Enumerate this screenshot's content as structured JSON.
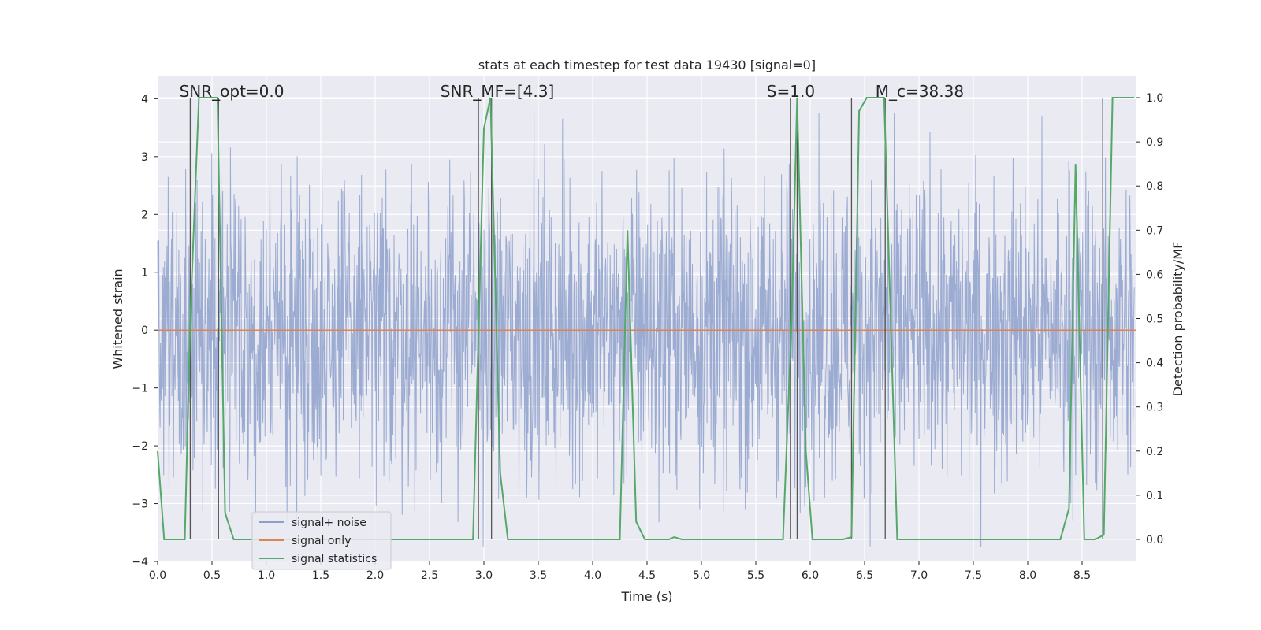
{
  "chart_data": {
    "type": "line",
    "title": "stats at each timestep for test data 19430 [signal=0]",
    "xlabel": "Time (s)",
    "ylabel": "Whitened strain",
    "ylabel_right": "Detection probability/MF",
    "xlim": [
      0,
      9
    ],
    "ylim": [
      -4,
      4.4
    ],
    "ylim_right": [
      -0.05,
      1.05
    ],
    "x_ticks": [
      "0.0",
      "0.5",
      "1.0",
      "1.5",
      "2.0",
      "2.5",
      "3.0",
      "3.5",
      "4.0",
      "4.5",
      "5.0",
      "5.5",
      "6.0",
      "6.5",
      "7.0",
      "7.5",
      "8.0",
      "8.5"
    ],
    "x_tick_values": [
      0,
      0.5,
      1,
      1.5,
      2,
      2.5,
      3,
      3.5,
      4,
      4.5,
      5,
      5.5,
      6,
      6.5,
      7,
      7.5,
      8,
      8.5
    ],
    "y_ticks": [
      "−4",
      "−3",
      "−2",
      "−1",
      "0",
      "1",
      "2",
      "3",
      "4"
    ],
    "y_tick_values": [
      -4,
      -3,
      -2,
      -1,
      0,
      1,
      2,
      3,
      4
    ],
    "y_right_ticks": [
      "0.0",
      "0.1",
      "0.2",
      "0.3",
      "0.4",
      "0.5",
      "0.6",
      "0.7",
      "0.8",
      "0.9",
      "1.0"
    ],
    "y_right_tick_values": [
      0,
      0.1,
      0.2,
      0.3,
      0.4,
      0.5,
      0.6,
      0.7,
      0.8,
      0.9,
      1.0
    ],
    "grid": true,
    "legend_position": "lower-left",
    "annotations": [
      {
        "text": "SNR_opt=0.0",
        "x": 0.2
      },
      {
        "text": "SNR_MF=[4.3]",
        "x": 2.6
      },
      {
        "text": "S=1.0",
        "x": 5.6
      },
      {
        "text": "M_c=38.38",
        "x": 6.6
      }
    ],
    "vertical_lines": [
      0.3,
      0.56,
      2.95,
      3.07,
      5.82,
      5.88,
      6.38,
      6.69,
      8.69
    ],
    "series": [
      {
        "name": "signal+ noise",
        "color": "#8da0cb",
        "axis": "left",
        "note": "dense noise trace, roughly within ±3.8 strain units",
        "spread": 1.3
      },
      {
        "name": "signal only",
        "color": "#dd8452",
        "axis": "left",
        "x": [
          0,
          9
        ],
        "y": [
          0,
          0
        ]
      },
      {
        "name": "signal statistics",
        "color": "#55a868",
        "axis": "right",
        "x": [
          0,
          0.06,
          0.25,
          0.3,
          0.38,
          0.55,
          0.62,
          0.7,
          2.9,
          3.0,
          3.06,
          3.15,
          3.22,
          3.4,
          3.5,
          4.25,
          4.32,
          4.4,
          4.48,
          4.7,
          4.75,
          4.82,
          5.75,
          5.83,
          5.88,
          5.96,
          6.02,
          6.3,
          6.38,
          6.45,
          6.52,
          6.68,
          6.8,
          8.3,
          8.38,
          8.44,
          8.52,
          8.62,
          8.7,
          8.78,
          8.98
        ],
        "y": [
          0.2,
          0.0,
          0.0,
          0.5,
          1.0,
          1.0,
          0.06,
          0.0,
          0.0,
          0.93,
          1.0,
          0.15,
          0.0,
          0.0,
          0.0,
          0.0,
          0.7,
          0.04,
          0.0,
          0.0,
          0.005,
          0.0,
          0.0,
          0.5,
          1.0,
          0.2,
          0.0,
          0.0,
          0.005,
          0.97,
          1.0,
          1.0,
          0.0,
          0.0,
          0.07,
          0.85,
          0.0,
          0.0,
          0.01,
          1.0,
          1.0
        ]
      }
    ]
  }
}
